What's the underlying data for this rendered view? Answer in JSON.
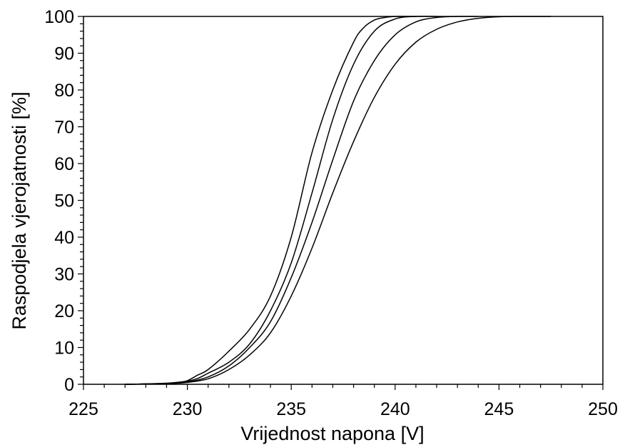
{
  "chart_data": {
    "type": "line",
    "title": "",
    "xlabel": "Vrijednost napona [V]",
    "ylabel": "Raspodjela vjerojatnosti [%]",
    "xlim": [
      225,
      250
    ],
    "ylim": [
      0,
      100
    ],
    "xticks": [
      225,
      230,
      235,
      240,
      245,
      250
    ],
    "yticks": [
      0,
      10,
      20,
      30,
      40,
      50,
      60,
      70,
      80,
      90,
      100
    ],
    "x_minor_step": 1,
    "y_minor_step": 2,
    "grid": false,
    "line_color": "#000000",
    "series": [
      {
        "x": [
          227,
          228,
          229,
          229.5,
          230,
          230.5,
          231,
          232,
          233,
          234,
          235,
          236,
          237,
          238,
          238.5,
          239,
          239.5,
          240,
          240.5,
          241
        ],
        "y": [
          0,
          0.1,
          0.3,
          0.5,
          1,
          2.5,
          4,
          9,
          15,
          24,
          40,
          63,
          80,
          93,
          97,
          99,
          99.7,
          100,
          100,
          100
        ]
      },
      {
        "x": [
          227,
          228,
          229,
          229.5,
          230,
          230.5,
          231,
          232,
          233,
          234,
          235,
          236,
          237,
          238,
          239,
          240,
          241,
          242
        ],
        "y": [
          0,
          0.1,
          0.2,
          0.5,
          0.8,
          1.6,
          3,
          6,
          11,
          20,
          33,
          52,
          72,
          87,
          96,
          99.3,
          100,
          100
        ]
      },
      {
        "x": [
          227,
          228,
          229,
          230,
          231,
          232,
          233,
          234,
          235,
          236,
          237,
          238,
          239,
          240,
          241,
          242,
          243,
          244
        ],
        "y": [
          0,
          0.1,
          0.2,
          0.6,
          2,
          5,
          10,
          17,
          29,
          44,
          61,
          77,
          88,
          95,
          98.5,
          99.7,
          100,
          100
        ]
      },
      {
        "x": [
          227,
          228,
          229,
          230,
          231,
          232,
          233,
          234,
          235,
          236,
          237,
          238,
          239,
          240,
          241,
          242,
          243,
          244,
          245,
          246,
          247.5
        ],
        "y": [
          0,
          0.1,
          0.2,
          0.5,
          1.5,
          4,
          8,
          14,
          24,
          37,
          52,
          66,
          78,
          87,
          93,
          96.5,
          98.5,
          99.5,
          99.9,
          100,
          100
        ]
      }
    ]
  }
}
